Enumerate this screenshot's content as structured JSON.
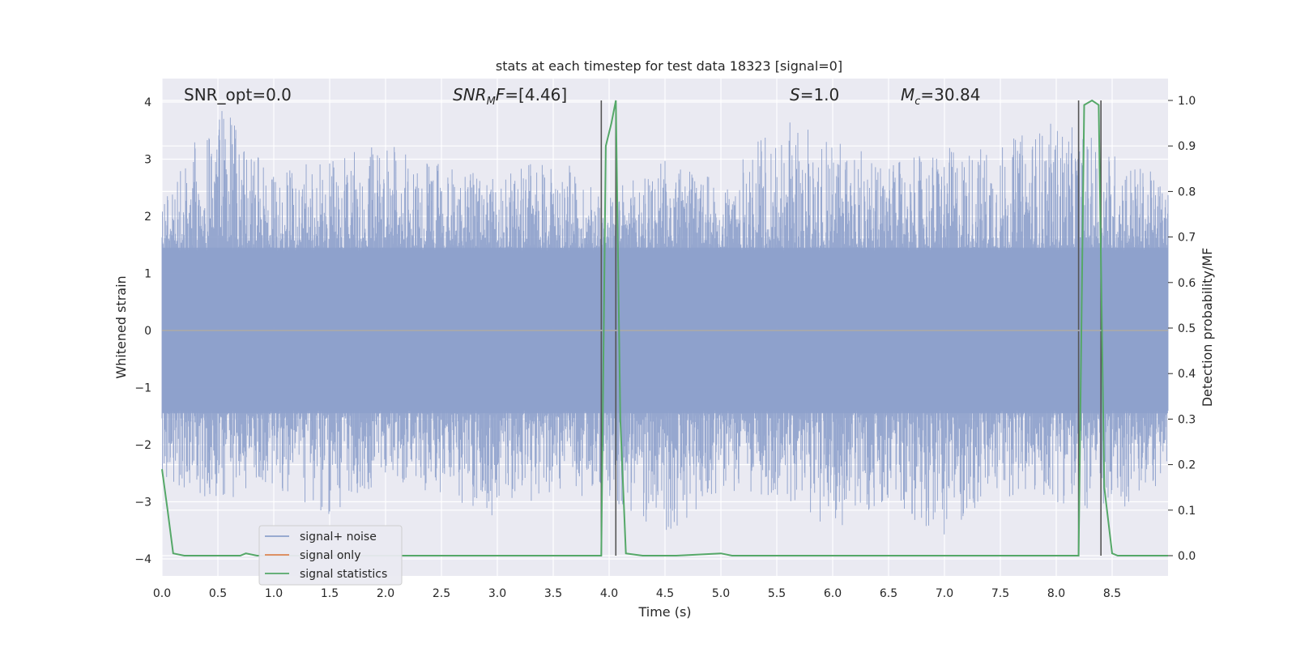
{
  "chart_data": {
    "type": "line",
    "title": "stats at each timestep for test data 18323 [signal=0]",
    "xlabel": "Time (s)",
    "ylabel": "Whitened strain",
    "y2label": "Detection probability/MF",
    "xlim": [
      0.0,
      9.0
    ],
    "ylim": [
      -4.4,
      4.4
    ],
    "y2lim": [
      -0.05,
      1.05
    ],
    "xticks": [
      "0.0",
      "0.5",
      "1.0",
      "1.5",
      "2.0",
      "2.5",
      "3.0",
      "3.5",
      "4.0",
      "4.5",
      "5.0",
      "5.5",
      "6.0",
      "6.5",
      "7.0",
      "7.5",
      "8.0",
      "8.5"
    ],
    "yticks": [
      "−4",
      "−3",
      "−2",
      "−1",
      "0",
      "1",
      "2",
      "3",
      "4"
    ],
    "y2ticks": [
      "0.0",
      "0.1",
      "0.2",
      "0.3",
      "0.4",
      "0.5",
      "0.6",
      "0.7",
      "0.8",
      "0.9",
      "1.0"
    ],
    "grid": true,
    "legend_position": "lower-left",
    "annotations": {
      "snr_opt": "SNR_opt=0.0",
      "snr_mf": "=[4.46]",
      "s_stat": "=1.0",
      "mc": "=30.84"
    },
    "noise_envelope": {
      "x": [
        0.0,
        0.5,
        1.0,
        1.5,
        2.0,
        2.5,
        3.0,
        3.5,
        4.0,
        4.5,
        5.0,
        5.5,
        6.0,
        6.5,
        7.0,
        7.5,
        8.0,
        8.5,
        9.0
      ],
      "upper_peak": [
        2.3,
        4.0,
        2.8,
        3.0,
        3.3,
        2.9,
        2.7,
        3.1,
        2.4,
        3.0,
        2.6,
        3.7,
        3.5,
        2.9,
        3.2,
        3.3,
        3.7,
        3.2,
        2.6
      ],
      "lower_peak": [
        -2.6,
        -3.0,
        -2.8,
        -3.3,
        -2.6,
        -2.9,
        -3.3,
        -2.8,
        -3.0,
        -3.6,
        -2.8,
        -2.9,
        -3.5,
        -3.1,
        -3.6,
        -2.9,
        -3.0,
        -3.3,
        -2.6
      ]
    },
    "series": [
      {
        "name": "signal+ noise",
        "color": "#8da0cb",
        "kind": "noise"
      },
      {
        "name": "signal only",
        "color": "#dd8452",
        "kind": "flat",
        "y": [
          0.0,
          0.0
        ]
      },
      {
        "name": "signal statistics",
        "color": "#55a868",
        "axis": "right",
        "x": [
          0.0,
          0.05,
          0.1,
          0.2,
          0.7,
          0.75,
          0.85,
          1.0,
          2.0,
          3.0,
          3.93,
          3.97,
          4.02,
          4.06,
          4.1,
          4.15,
          4.3,
          4.6,
          5.0,
          5.1,
          5.5,
          6.0,
          7.0,
          8.0,
          8.2,
          8.25,
          8.32,
          8.38,
          8.43,
          8.5,
          8.55,
          9.0
        ],
        "y": [
          0.19,
          0.1,
          0.005,
          0.0,
          0.0,
          0.005,
          0.0,
          0.0,
          0.0,
          0.0,
          0.0,
          0.9,
          0.95,
          1.0,
          0.3,
          0.005,
          0.0,
          0.0,
          0.005,
          0.0,
          0.0,
          0.0,
          0.0,
          0.0,
          0.0,
          0.99,
          1.0,
          0.99,
          0.15,
          0.005,
          0.0,
          0.0
        ]
      }
    ],
    "vertical_lines": [
      3.93,
      4.06,
      8.2,
      8.4
    ]
  }
}
